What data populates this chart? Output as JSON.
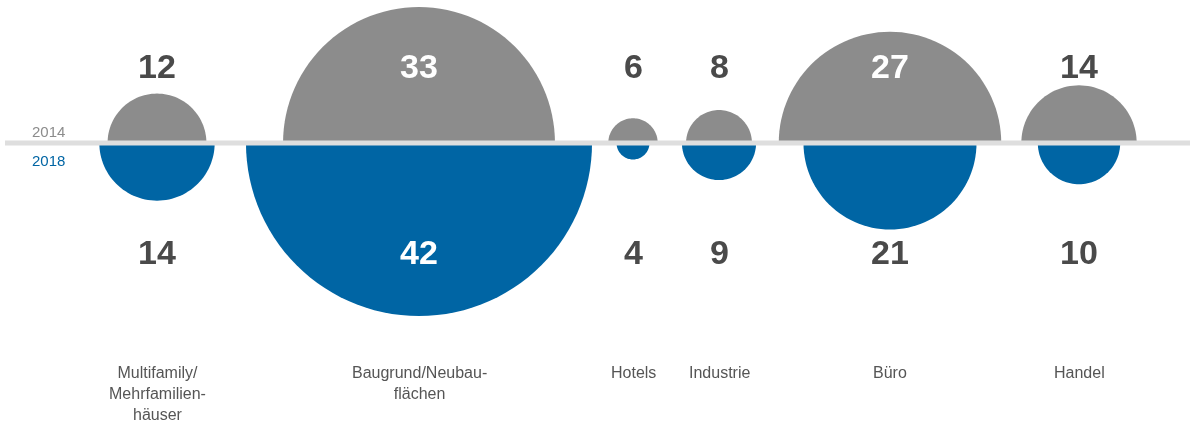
{
  "chart_data": {
    "type": "other",
    "categories": [
      "Multifamily/\nMehrfamilien-\nhäuser",
      "Baugrund/Neubau-\nflächen",
      "Hotels",
      "Industrie",
      "Büro",
      "Handel"
    ],
    "series": [
      {
        "name": "2014",
        "color": "#8c8c8c",
        "values": [
          12,
          33,
          6,
          8,
          27,
          14
        ]
      },
      {
        "name": "2018",
        "color": "#0065a4",
        "values": [
          14,
          42,
          4,
          9,
          21,
          10
        ]
      }
    ],
    "data_labels": true
  }
}
